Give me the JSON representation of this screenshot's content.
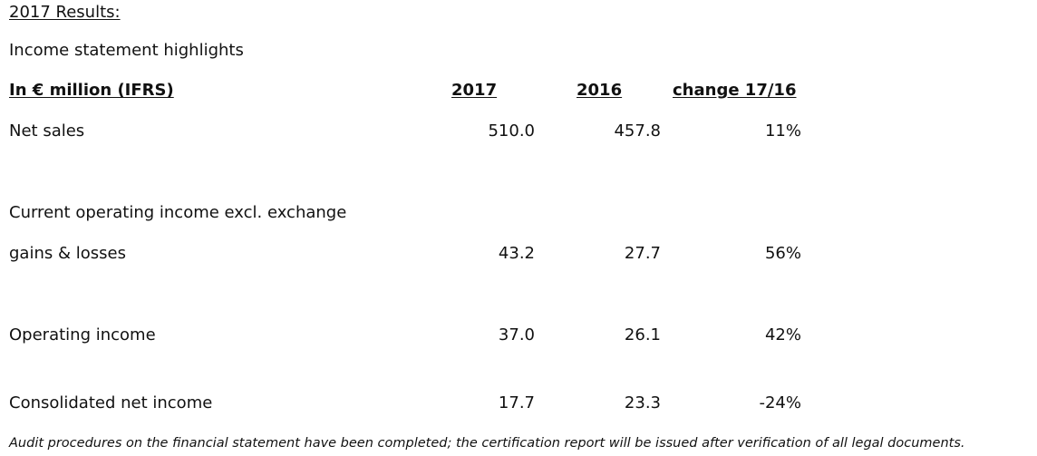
{
  "doc": {
    "section_title": "2017 Results:",
    "subtitle": "Income statement highlights"
  },
  "table": {
    "headers": {
      "label": "In € million  (IFRS)",
      "col_2017": "2017",
      "col_2016": "2016",
      "col_change": "change 17/16"
    },
    "rows": [
      {
        "label": "Net sales",
        "v2017": "510.0",
        "v2016": "457.8",
        "change": "11%"
      },
      {
        "label": "Current operating income excl. exchange",
        "label2": "gains & losses",
        "v2017": "43.2",
        "v2016": "27.7",
        "change": "56%"
      },
      {
        "label": "Operating income",
        "v2017": "37.0",
        "v2016": "26.1",
        "change": "42%"
      },
      {
        "label": "Consolidated net income",
        "v2017": "17.7",
        "v2016": "23.3",
        "change": "-24%"
      }
    ]
  },
  "footnote": "Audit procedures on the financial statement have been completed; the certification report will be issued after verification of all legal documents."
}
